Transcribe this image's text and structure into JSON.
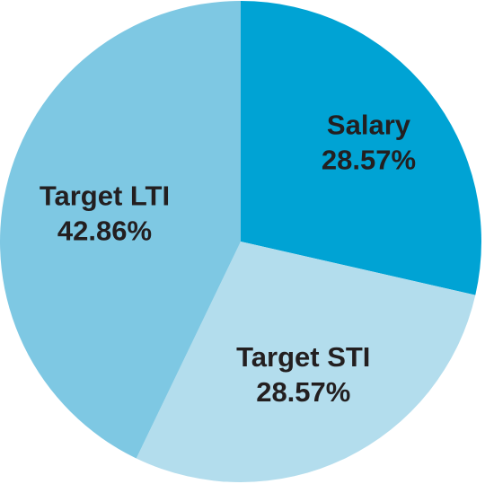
{
  "chart_data": {
    "type": "pie",
    "title": "",
    "slices": [
      {
        "label": "Salary",
        "value": 28.57,
        "value_text": "28.57%",
        "color": "#00a3d4"
      },
      {
        "label": "Target STI",
        "value": 28.57,
        "value_text": "28.57%",
        "color": "#b3dded"
      },
      {
        "label": "Target LTI",
        "value": 42.86,
        "value_text": "42.86%",
        "color": "#7ec8e3"
      }
    ],
    "start_angle_deg": 0,
    "direction": "clockwise",
    "legend": "none"
  }
}
